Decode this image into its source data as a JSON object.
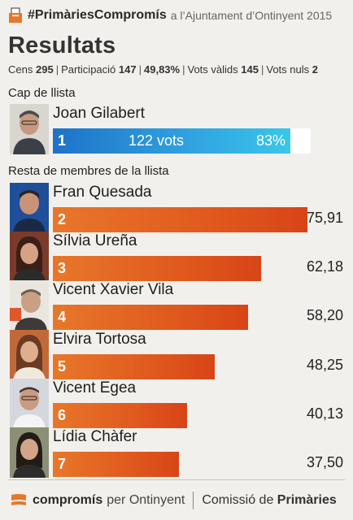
{
  "header": {
    "hashtag": "#PrimàriesCompromís",
    "subtitle": "a l’Ajuntament d’Ontinyent 2015"
  },
  "title": "Resultats",
  "stats": {
    "cens_label": "Cens",
    "cens_value": "295",
    "participacio_label": "Participació",
    "participacio_value": "147",
    "percent": "49,83%",
    "valids_label": "Vots vàlids",
    "valids_value": "145",
    "nuls_label": "Vots nuls",
    "nuls_value": "2"
  },
  "head_section": {
    "label": "Cap de llista",
    "candidate": {
      "name": "Joan Gilabert",
      "position": "1",
      "votes_text": "122 vots",
      "percent_text": "83%",
      "percent": 83
    }
  },
  "rest_section": {
    "label": "Resta de membres de la llista",
    "candidates": [
      {
        "name": "Fran Quesada",
        "position": "2",
        "score": "75,91",
        "value": 75.91
      },
      {
        "name": "Sílvia Ureña",
        "position": "3",
        "score": "62,18",
        "value": 62.18
      },
      {
        "name": "Vicent Xavier Vila",
        "position": "4",
        "score": "58,20",
        "value": 58.2
      },
      {
        "name": "Elvira Tortosa",
        "position": "5",
        "score": "48,25",
        "value": 48.25
      },
      {
        "name": "Vicent Egea",
        "position": "6",
        "score": "40,13",
        "value": 40.13
      },
      {
        "name": "Lídia Chàfer",
        "position": "7",
        "score": "37,50",
        "value": 37.5
      }
    ]
  },
  "footer": {
    "brand": "compromís",
    "city": "per Ontinyent",
    "commission": "Comissió de",
    "primaries": "Primàries"
  },
  "colors": {
    "accent_orange": "#e05a1e",
    "accent_blue": "#2fa0e0",
    "background": "#f1f0ec"
  },
  "icons": {
    "header": "ballot-box-icon",
    "footer": "compromis-logo-icon"
  }
}
